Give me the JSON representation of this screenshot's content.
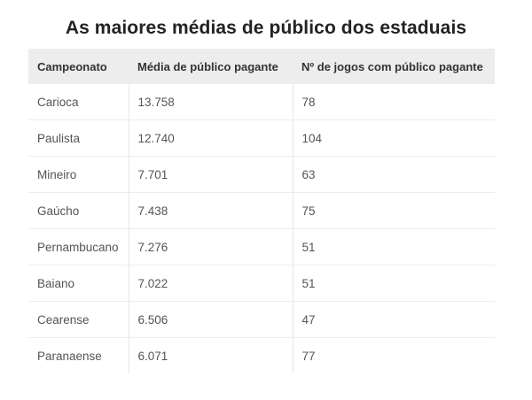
{
  "title": "As maiores médias de público dos estaduais",
  "table": {
    "headers": [
      "Campeonato",
      "Média de público pagante",
      "Nº de jogos com público pagante"
    ],
    "rows": [
      [
        "Carioca",
        "13.758",
        "78"
      ],
      [
        "Paulista",
        "12.740",
        "104"
      ],
      [
        "Mineiro",
        "7.701",
        "63"
      ],
      [
        "Gaúcho",
        "7.438",
        "75"
      ],
      [
        "Pernambucano",
        "7.276",
        "51"
      ],
      [
        "Baiano",
        "7.022",
        "51"
      ],
      [
        "Cearense",
        "6.506",
        "47"
      ],
      [
        "Paranaense",
        "6.071",
        "77"
      ]
    ]
  }
}
